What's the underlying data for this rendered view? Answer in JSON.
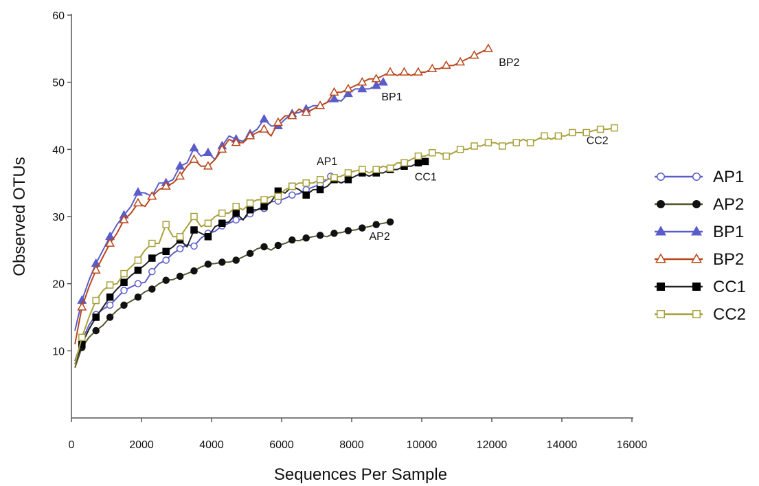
{
  "chart_data": {
    "type": "line",
    "title": "",
    "xlabel": "Sequences Per Sample",
    "ylabel": "Observed OTUs",
    "xlim": [
      0,
      16000
    ],
    "ylim": [
      0,
      60
    ],
    "xticks": [
      0,
      2000,
      4000,
      6000,
      8000,
      10000,
      12000,
      14000,
      16000
    ],
    "xtick_labels": [
      "0",
      "2000",
      "4000",
      "6000",
      "8000",
      "10000",
      "12000",
      "14000",
      "16000"
    ],
    "yticks": [
      10,
      20,
      30,
      40,
      50,
      60
    ],
    "ytick_labels": [
      "10",
      "20",
      "30",
      "40",
      "50",
      "60"
    ],
    "grid": false,
    "legend_position": "right",
    "series": [
      {
        "name": "AP1",
        "color": "#5a5cc9",
        "marker": "circle-open",
        "x": [
          100,
          300,
          500,
          700,
          900,
          1100,
          1300,
          1500,
          1700,
          1900,
          2100,
          2300,
          2500,
          2700,
          2900,
          3100,
          3300,
          3500,
          3700,
          3900,
          4100,
          4300,
          4500,
          4700,
          4900,
          5100,
          5300,
          5500,
          5700,
          5900,
          6100,
          6300,
          6500,
          6700,
          6900,
          7100,
          7300,
          7400
        ],
        "y": [
          8.5,
          11.5,
          13.8,
          15.4,
          16.2,
          16.8,
          17.9,
          19.0,
          19.5,
          20.0,
          20.2,
          21.8,
          23.0,
          23.5,
          24.5,
          25.2,
          25.8,
          25.6,
          26.8,
          27.5,
          27.8,
          28.6,
          29.0,
          29.5,
          29.6,
          30.4,
          31.0,
          31.2,
          32.2,
          32.3,
          32.7,
          33.2,
          33.4,
          34.0,
          34.4,
          34.8,
          35.5,
          36.0
        ]
      },
      {
        "name": "AP2",
        "color": "#111111",
        "line_color": "#55552e",
        "marker": "circle-filled",
        "x": [
          100,
          300,
          500,
          700,
          900,
          1100,
          1300,
          1500,
          1700,
          1900,
          2100,
          2300,
          2500,
          2700,
          2900,
          3100,
          3300,
          3500,
          3700,
          3900,
          4100,
          4300,
          4500,
          4700,
          4900,
          5100,
          5300,
          5500,
          5700,
          5900,
          6100,
          6300,
          6500,
          6700,
          6900,
          7100,
          7300,
          7500,
          7700,
          7900,
          8100,
          8300,
          8500,
          8700,
          8900,
          9100
        ],
        "y": [
          7.5,
          10.5,
          12.0,
          13.0,
          13.8,
          15.0,
          16.0,
          16.8,
          17.4,
          18.0,
          18.8,
          19.2,
          20.0,
          20.5,
          20.6,
          21.1,
          21.5,
          21.9,
          22.5,
          22.9,
          23.0,
          23.2,
          23.2,
          23.5,
          24.0,
          24.5,
          25.2,
          25.5,
          25.0,
          25.7,
          26.0,
          26.5,
          26.4,
          26.8,
          27.0,
          27.2,
          27.0,
          27.5,
          27.6,
          27.9,
          28.0,
          28.3,
          28.5,
          28.8,
          29.0,
          29.2
        ]
      },
      {
        "name": "BP1",
        "color": "#5a5cc9",
        "marker": "triangle-filled",
        "x": [
          100,
          300,
          500,
          700,
          900,
          1100,
          1300,
          1500,
          1700,
          1900,
          2100,
          2300,
          2500,
          2700,
          2900,
          3100,
          3300,
          3500,
          3700,
          3900,
          4100,
          4300,
          4500,
          4700,
          4900,
          5100,
          5300,
          5500,
          5700,
          5900,
          6100,
          6300,
          6500,
          6700,
          6900,
          7100,
          7300,
          7500,
          7700,
          7900,
          8100,
          8300,
          8500,
          8700,
          8900
        ],
        "y": [
          13.0,
          17.5,
          20.5,
          23.0,
          25.0,
          27.0,
          28.8,
          30.2,
          31.5,
          33.6,
          33.5,
          33.0,
          35.0,
          35.0,
          35.5,
          37.5,
          38.0,
          40.2,
          39.0,
          39.5,
          38.5,
          40.5,
          42.0,
          41.5,
          41.2,
          42.3,
          43.0,
          44.5,
          43.5,
          43.5,
          44.5,
          45.3,
          45.5,
          46.0,
          46.5,
          46.5,
          47.0,
          47.5,
          47.2,
          48.3,
          49.0,
          49.0,
          49.0,
          49.5,
          50.0
        ]
      },
      {
        "name": "BP2",
        "color": "#b9471a",
        "marker": "triangle-open",
        "x": [
          100,
          300,
          500,
          700,
          900,
          1100,
          1300,
          1500,
          1700,
          1900,
          2100,
          2300,
          2500,
          2700,
          2900,
          3100,
          3300,
          3500,
          3700,
          3900,
          4100,
          4300,
          4500,
          4700,
          4900,
          5100,
          5300,
          5500,
          5700,
          5900,
          6100,
          6300,
          6500,
          6700,
          6900,
          7100,
          7300,
          7500,
          7700,
          7900,
          8100,
          8300,
          8500,
          8700,
          8900,
          9100,
          9300,
          9500,
          9700,
          9900,
          10100,
          10300,
          10500,
          10700,
          10900,
          11100,
          11300,
          11500,
          11700,
          11900
        ],
        "y": [
          11.0,
          16.5,
          19.5,
          22.0,
          24.0,
          26.0,
          27.5,
          29.5,
          30.5,
          32.0,
          31.5,
          33.0,
          34.0,
          34.5,
          35.0,
          36.0,
          37.5,
          38.5,
          37.5,
          37.5,
          38.5,
          40.0,
          41.5,
          41.0,
          41.0,
          42.0,
          42.5,
          43.0,
          42.0,
          44.0,
          45.0,
          45.0,
          46.0,
          45.5,
          46.0,
          46.5,
          47.0,
          48.5,
          48.5,
          49.0,
          49.5,
          50.0,
          50.5,
          50.5,
          51.0,
          51.5,
          51.0,
          51.5,
          51.0,
          51.5,
          51.5,
          52.0,
          52.0,
          52.5,
          52.5,
          53.0,
          53.5,
          54.0,
          54.5,
          55.0
        ]
      },
      {
        "name": "CC1",
        "color": "#000000",
        "line_color": "#222222",
        "marker": "square-filled",
        "x": [
          100,
          300,
          500,
          700,
          900,
          1100,
          1300,
          1500,
          1700,
          1900,
          2100,
          2300,
          2500,
          2700,
          2900,
          3100,
          3300,
          3500,
          3700,
          3900,
          4100,
          4300,
          4500,
          4700,
          4900,
          5100,
          5300,
          5500,
          5700,
          5900,
          6100,
          6300,
          6500,
          6700,
          6900,
          7100,
          7300,
          7500,
          7700,
          7900,
          8100,
          8300,
          8500,
          8700,
          8900,
          9100,
          9300,
          9500,
          9700,
          9900,
          10100
        ],
        "y": [
          8.0,
          11.0,
          13.2,
          15.0,
          16.5,
          18.0,
          19.2,
          20.2,
          21.2,
          22.0,
          22.8,
          23.8,
          24.5,
          24.8,
          25.5,
          26.5,
          25.5,
          28.0,
          27.5,
          27.0,
          28.5,
          29.0,
          29.2,
          30.5,
          29.5,
          31.0,
          31.0,
          31.5,
          32.2,
          33.8,
          33.5,
          34.5,
          34.0,
          33.2,
          34.0,
          34.0,
          34.5,
          35.5,
          35.0,
          35.5,
          36.0,
          36.5,
          36.0,
          36.5,
          36.5,
          37.0,
          37.0,
          37.5,
          37.5,
          38.0,
          38.2
        ]
      },
      {
        "name": "CC2",
        "color": "#a8a03a",
        "marker": "square-open",
        "x": [
          100,
          300,
          500,
          700,
          900,
          1100,
          1300,
          1500,
          1700,
          1900,
          2100,
          2300,
          2500,
          2700,
          2900,
          3100,
          3300,
          3500,
          3700,
          3900,
          4100,
          4300,
          4500,
          4700,
          4900,
          5100,
          5300,
          5500,
          5700,
          5900,
          6100,
          6300,
          6500,
          6700,
          6900,
          7100,
          7300,
          7500,
          7700,
          7900,
          8100,
          8300,
          8500,
          8700,
          8900,
          9100,
          9300,
          9500,
          9700,
          9900,
          10100,
          10300,
          10500,
          10700,
          10900,
          11100,
          11300,
          11500,
          11700,
          11900,
          12100,
          12300,
          12500,
          12700,
          12900,
          13100,
          13300,
          13500,
          13700,
          13900,
          14100,
          14300,
          14500,
          14700,
          14900,
          15100,
          15300,
          15500
        ],
        "y": [
          8.0,
          12.0,
          15.0,
          17.5,
          19.0,
          19.8,
          20.0,
          21.5,
          22.5,
          23.5,
          25.0,
          26.0,
          26.0,
          28.8,
          27.0,
          27.0,
          28.5,
          30.0,
          28.5,
          29.0,
          30.0,
          30.5,
          30.5,
          31.5,
          31.0,
          32.0,
          32.5,
          32.5,
          33.0,
          33.0,
          34.0,
          34.5,
          35.0,
          35.0,
          35.0,
          35.5,
          35.5,
          35.8,
          36.0,
          36.5,
          36.8,
          37.0,
          36.5,
          37.0,
          37.5,
          37.2,
          38.0,
          38.0,
          38.5,
          39.0,
          39.0,
          39.5,
          39.5,
          39.0,
          39.5,
          40.0,
          40.0,
          40.5,
          40.5,
          41.0,
          41.0,
          40.5,
          41.0,
          41.0,
          41.5,
          41.0,
          41.5,
          42.0,
          41.5,
          42.0,
          42.0,
          42.5,
          42.5,
          42.5,
          42.8,
          43.0,
          43.0,
          43.2
        ]
      }
    ],
    "annotations": [
      {
        "text": "BP2",
        "x": 12200,
        "y": 52.4
      },
      {
        "text": "BP1",
        "x": 8850,
        "y": 47.3
      },
      {
        "text": "CC2",
        "x": 14700,
        "y": 40.8
      },
      {
        "text": "AP1",
        "x": 7000,
        "y": 37.7
      },
      {
        "text": "CC1",
        "x": 9800,
        "y": 35.4
      },
      {
        "text": "AP2",
        "x": 8500,
        "y": 26.5
      }
    ]
  }
}
